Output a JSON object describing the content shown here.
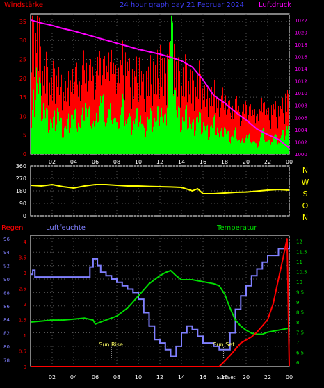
{
  "header": {
    "left_label": "Windstärke",
    "center_label": "24 hour graph day  21 Februar 2024",
    "right_label": "Luftdruck"
  },
  "time_ticks": [
    "02",
    "04",
    "06",
    "08",
    "10",
    "12",
    "14",
    "16",
    "18",
    "20",
    "22",
    "00"
  ],
  "colors": {
    "background": "#000000",
    "wind_gust": "#ff0000",
    "wind_speed": "#00ff00",
    "pressure": "#ff00ff",
    "direction": "#ffff00",
    "humidity": "#8080ff",
    "temperature": "#00dd00",
    "rain": "#ff0000",
    "axis": "#ffffff",
    "grid": "#555555"
  },
  "wind_panel": {
    "left_ticks": [
      "35",
      "30",
      "25",
      "20",
      "15",
      "10",
      "5",
      "0"
    ],
    "right_ticks": [
      "1022",
      "1020",
      "1018",
      "1016",
      "1014",
      "1012",
      "1010",
      "1008",
      "1006",
      "1004",
      "1002",
      "1000"
    ]
  },
  "direction_panel": {
    "left_ticks": [
      "360",
      "270",
      "180",
      "90",
      "0"
    ],
    "compass": [
      "N",
      "W",
      "S",
      "O",
      "N"
    ]
  },
  "lower_panel": {
    "label_rain": "Regen",
    "label_humidity": "Luftfeuchte",
    "label_temperature": "Temperatur",
    "humidity_ticks": [
      "96",
      "94",
      "92",
      "90",
      "88",
      "86",
      "84",
      "82",
      "80",
      "78"
    ],
    "rain_ticks": [
      "4",
      "3.5",
      "3",
      "2.5",
      "2",
      "1.5",
      "1",
      "0.5",
      "0"
    ],
    "temp_ticks": [
      "12",
      "11.5",
      "11",
      "10.5",
      "10",
      "9.5",
      "9",
      "8.5",
      "8",
      "7.5",
      "7",
      "6.5",
      "6"
    ],
    "sun_rise_label": "Sun Rise",
    "sun_set_label": "Sun Set",
    "sun_set_label_bottom": "Sun Set",
    "sun_rise_hour": 7.5,
    "sun_set_hour": 17.9
  },
  "chart_data": [
    {
      "type": "line",
      "name": "wind-and-pressure",
      "xlabel": "",
      "x_range_hours": [
        0,
        24
      ],
      "ylim_left": [
        0,
        37
      ],
      "ylim_right": [
        1000,
        1023
      ],
      "series": [
        {
          "name": "Luftdruck",
          "axis": "right",
          "x": [
            0,
            1,
            2,
            3,
            4,
            5,
            6,
            7,
            8,
            9,
            10,
            11,
            12,
            13,
            14,
            15,
            16,
            17,
            18,
            19,
            20,
            21,
            22,
            23,
            24
          ],
          "values": [
            1022.0,
            1021.5,
            1021.1,
            1020.6,
            1020.2,
            1019.7,
            1019.2,
            1018.7,
            1018.2,
            1017.7,
            1017.2,
            1016.8,
            1016.4,
            1015.9,
            1015.3,
            1014.3,
            1012.2,
            1009.6,
            1008.4,
            1006.9,
            1005.6,
            1004.1,
            1003.2,
            1002.4,
            1001.0
          ]
        },
        {
          "name": "Windstärke",
          "axis": "left",
          "x": [
            0,
            0.5,
            1,
            1.5,
            2,
            2.5,
            3,
            3.5,
            4,
            4.5,
            5,
            5.5,
            6,
            6.5,
            7,
            7.5,
            8,
            8.5,
            9,
            9.5,
            10,
            10.5,
            11,
            11.5,
            12,
            12.5,
            13,
            13.5,
            14,
            14.5,
            15,
            15.5,
            16,
            16.5,
            17,
            17.5,
            18,
            18.5,
            19,
            19.5,
            20,
            20.5,
            21,
            21.5,
            22,
            22.5,
            23,
            23.5,
            24
          ],
          "values": [
            6,
            22,
            14,
            10,
            8,
            12,
            6,
            9,
            11,
            7,
            13,
            10,
            8,
            16,
            9,
            12,
            7,
            14,
            10,
            8,
            12,
            6,
            11,
            9,
            13,
            8,
            37,
            12,
            9,
            11,
            7,
            10,
            8,
            6,
            9,
            5,
            7,
            4,
            6,
            3,
            5,
            4,
            2,
            6,
            3,
            5,
            4,
            6,
            8
          ]
        },
        {
          "name": "Böen",
          "axis": "left",
          "x": [
            0,
            0.5,
            1,
            1.5,
            2,
            2.5,
            3,
            3.5,
            4,
            4.5,
            5,
            5.5,
            6,
            6.5,
            7,
            7.5,
            8,
            8.5,
            9,
            9.5,
            10,
            10.5,
            11,
            11.5,
            12,
            12.5,
            13,
            13.5,
            14,
            14.5,
            15,
            15.5,
            16,
            16.5,
            17,
            17.5,
            18,
            18.5,
            19,
            19.5,
            20,
            20.5,
            21,
            21.5,
            22,
            22.5,
            23,
            23.5,
            24
          ],
          "values": [
            30,
            36,
            25,
            22,
            20,
            24,
            18,
            21,
            23,
            19,
            25,
            22,
            20,
            26,
            21,
            24,
            18,
            25,
            22,
            19,
            23,
            17,
            22,
            21,
            25,
            20,
            30,
            22,
            20,
            23,
            18,
            21,
            19,
            16,
            19,
            14,
            16,
            12,
            14,
            10,
            13,
            11,
            9,
            13,
            10,
            12,
            11,
            13,
            17
          ]
        }
      ]
    },
    {
      "type": "line",
      "name": "wind-direction",
      "x_range_hours": [
        0,
        24
      ],
      "ylim": [
        0,
        360
      ],
      "series": [
        {
          "name": "Windrichtung",
          "x": [
            0,
            1,
            2,
            3,
            4,
            5,
            6,
            7,
            8,
            9,
            10,
            11,
            12,
            13,
            14,
            15,
            15.5,
            16,
            17,
            18,
            19,
            20,
            21,
            22,
            23,
            24
          ],
          "values": [
            220,
            215,
            225,
            210,
            200,
            215,
            225,
            225,
            220,
            215,
            215,
            212,
            210,
            208,
            205,
            180,
            195,
            160,
            160,
            165,
            170,
            172,
            178,
            185,
            190,
            185
          ]
        }
      ]
    },
    {
      "type": "line",
      "name": "rain-humidity-temperature",
      "x_range_hours": [
        0,
        24
      ],
      "ylim_humidity": [
        77,
        96.5
      ],
      "ylim_rain": [
        0,
        4.2
      ],
      "ylim_temp": [
        5.8,
        12.3
      ],
      "series": [
        {
          "name": "Luftfeuchte",
          "axis": "humidity",
          "x": [
            0,
            0.2,
            0.4,
            1,
            2,
            3,
            4,
            5,
            5.5,
            5.8,
            6.2,
            6.5,
            7,
            7.5,
            8,
            8.5,
            9,
            9.5,
            10,
            10.5,
            11,
            11.5,
            12,
            12.5,
            13,
            13.5,
            14,
            14.5,
            15,
            15.5,
            16,
            16.5,
            17,
            17.5,
            18,
            18.5,
            19,
            19.5,
            20,
            20.5,
            21,
            21.5,
            22,
            22.5,
            23,
            23.5,
            24
          ],
          "values": [
            90.7,
            91.3,
            90.3,
            90.3,
            90.3,
            90.3,
            90.3,
            90.3,
            91.8,
            93,
            92,
            91,
            90.5,
            90,
            89.5,
            89,
            88.5,
            88,
            87,
            85,
            83,
            81,
            80.5,
            79.5,
            78.5,
            80,
            82,
            83,
            82.5,
            81.5,
            80.5,
            80.5,
            80,
            79.5,
            79.5,
            82,
            85.5,
            87.5,
            89,
            90.5,
            91.5,
            92.5,
            93.5,
            93.5,
            94.5,
            94.5,
            95
          ]
        },
        {
          "name": "Temperatur",
          "axis": "temp",
          "x": [
            0,
            1,
            2,
            3,
            4,
            5,
            5.8,
            6,
            6.5,
            7,
            7.5,
            8,
            8.5,
            9,
            9.5,
            10,
            10.5,
            11,
            11.5,
            12,
            12.5,
            13,
            13.5,
            14,
            15,
            16,
            17,
            17.5,
            18,
            18.5,
            19,
            19.5,
            20,
            20.5,
            21,
            21.5,
            22,
            22.5,
            23,
            23.5,
            24
          ],
          "values": [
            8.0,
            8.05,
            8.1,
            8.1,
            8.15,
            8.2,
            8.1,
            7.9,
            8.0,
            8.1,
            8.2,
            8.3,
            8.5,
            8.7,
            9.0,
            9.3,
            9.6,
            9.9,
            10.1,
            10.3,
            10.45,
            10.55,
            10.3,
            10.1,
            10.1,
            10.0,
            9.9,
            9.8,
            9.4,
            8.7,
            8.1,
            7.8,
            7.6,
            7.45,
            7.4,
            7.4,
            7.5,
            7.55,
            7.6,
            7.65,
            7.7
          ]
        },
        {
          "name": "Regen",
          "axis": "rain",
          "x": [
            0,
            17.5,
            17.8,
            18.5,
            19,
            19.5,
            20,
            20.5,
            21,
            21.5,
            22,
            22.5,
            23,
            23.5,
            23.8,
            24
          ],
          "values": [
            0,
            0,
            0.1,
            0.35,
            0.55,
            0.75,
            0.85,
            0.95,
            1.1,
            1.3,
            1.5,
            2.0,
            2.8,
            3.6,
            4.1,
            0
          ]
        }
      ]
    }
  ]
}
